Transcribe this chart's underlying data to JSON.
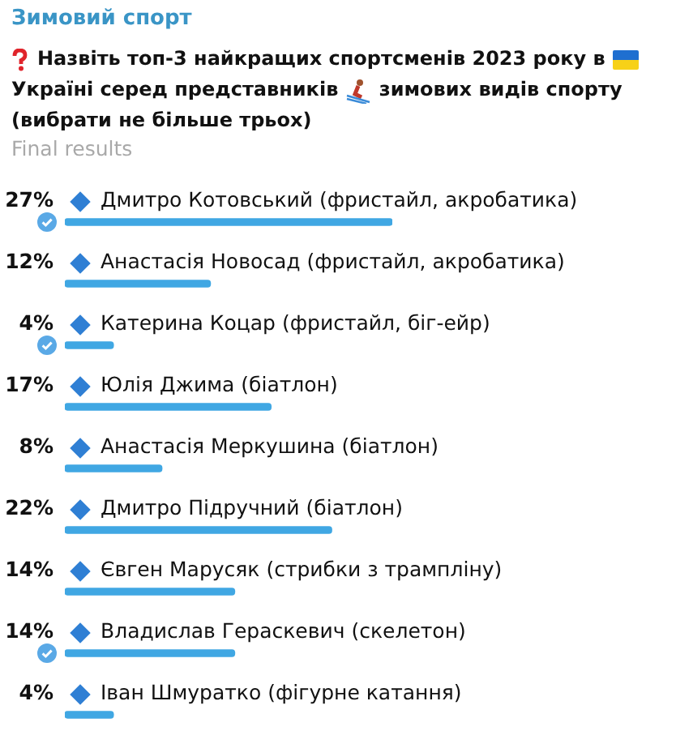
{
  "chart_data": {
    "type": "bar",
    "orientation": "horizontal",
    "title": "Зимовий спорт",
    "subtitle": "Назвіть топ-3 найкращих спортсменів 2023 року в Україні серед представників зимових видів спорту (вибрати не більше трьох)",
    "annotations": [
      "Final results"
    ],
    "categories": [
      "Дмитро Котовський (фристайл, акробатика)",
      "Анастасія Новосад (фристайл, акробатика)",
      "Катерина Коцар (фристайл, біг-ейр)",
      "Юлія Джима (біатлон)",
      "Анастасія Меркушина (біатлон)",
      "Дмитро Підручний (біатлон)",
      "Євген Марусяк (стрибки з трампліну)",
      "Владислав Гераскевич (скелетон)",
      "Іван Шмуратко (фігурне катання)"
    ],
    "values": [
      27,
      12,
      4,
      17,
      8,
      22,
      14,
      14,
      4
    ],
    "value_labels": [
      "27%",
      "12%",
      "4%",
      "17%",
      "8%",
      "22%",
      "14%",
      "14%",
      "4%"
    ],
    "color": "#40a7e3",
    "legend": false
  }
}
